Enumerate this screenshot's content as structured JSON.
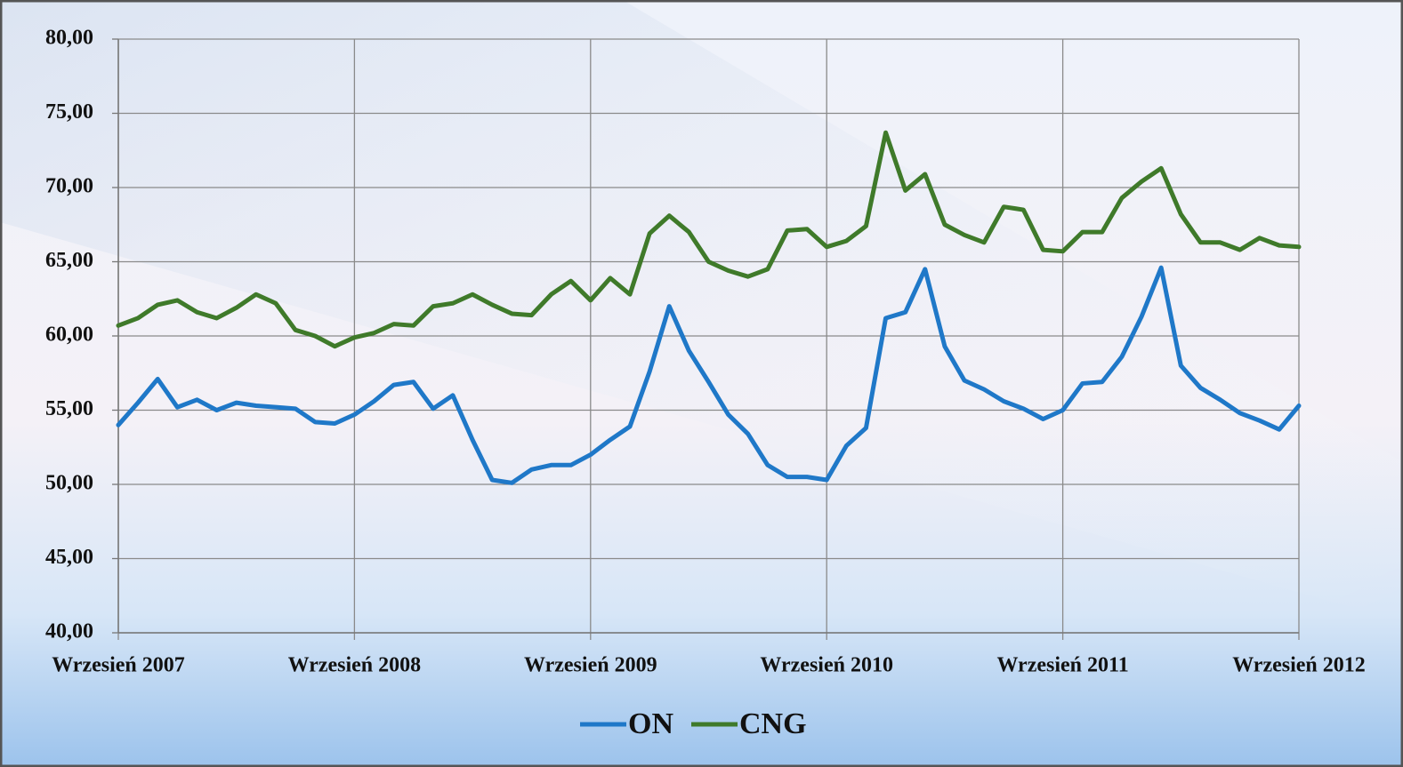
{
  "chart_data": {
    "type": "line",
    "categories": [
      "Wrzesień 2007",
      null,
      null,
      null,
      null,
      null,
      null,
      null,
      null,
      null,
      null,
      null,
      "Wrzesień 2008",
      null,
      null,
      null,
      null,
      null,
      null,
      null,
      null,
      null,
      null,
      null,
      "Wrzesień 2009",
      null,
      null,
      null,
      null,
      null,
      null,
      null,
      null,
      null,
      null,
      null,
      "Wrzesień 2010",
      null,
      null,
      null,
      null,
      null,
      null,
      null,
      null,
      null,
      null,
      null,
      "Wrzesień 2011",
      null,
      null,
      null,
      null,
      null,
      null,
      null,
      null,
      null,
      null,
      null,
      "Wrzesień 2012"
    ],
    "series": [
      {
        "name": "ON",
        "color": "#1f78c8",
        "values": [
          54.0,
          55.5,
          57.1,
          55.2,
          55.7,
          55.0,
          55.5,
          55.3,
          55.2,
          55.1,
          54.2,
          54.1,
          54.7,
          55.6,
          56.7,
          56.9,
          55.1,
          56.0,
          53.0,
          50.3,
          50.1,
          51.0,
          51.3,
          51.3,
          52.0,
          53.0,
          53.9,
          57.6,
          62.0,
          59.0,
          56.9,
          54.7,
          53.4,
          51.3,
          50.5,
          50.5,
          50.3,
          52.6,
          53.8,
          61.2,
          61.6,
          64.5,
          59.3,
          57.0,
          56.4,
          55.6,
          55.1,
          54.4,
          55.0,
          56.8,
          56.9,
          58.6,
          61.3,
          64.6,
          58.0,
          56.5,
          55.7,
          54.8,
          54.3,
          53.7,
          55.3
        ]
      },
      {
        "name": "CNG",
        "color": "#3f7a2a",
        "values": [
          60.7,
          61.2,
          62.1,
          62.4,
          61.6,
          61.2,
          61.9,
          62.8,
          62.2,
          60.4,
          60.0,
          59.3,
          59.9,
          60.2,
          60.8,
          60.7,
          62.0,
          62.2,
          62.8,
          62.1,
          61.5,
          61.4,
          62.8,
          63.7,
          62.4,
          63.9,
          62.8,
          66.9,
          68.1,
          67.0,
          65.0,
          64.4,
          64.0,
          64.5,
          67.1,
          67.2,
          66.0,
          66.4,
          67.4,
          73.7,
          69.8,
          70.9,
          67.5,
          66.8,
          66.3,
          68.7,
          68.5,
          65.8,
          65.7,
          67.0,
          67.0,
          69.3,
          70.4,
          71.3,
          68.2,
          66.3,
          66.3,
          65.8,
          66.6,
          66.1,
          66.0
        ]
      }
    ],
    "ylim": [
      40,
      80
    ],
    "yticks": [
      {
        "value": 40,
        "label": "40,00"
      },
      {
        "value": 45,
        "label": "45,00"
      },
      {
        "value": 50,
        "label": "50,00"
      },
      {
        "value": 55,
        "label": "55,00"
      },
      {
        "value": 60,
        "label": "60,00"
      },
      {
        "value": 65,
        "label": "65,00"
      },
      {
        "value": 70,
        "label": "70,00"
      },
      {
        "value": 75,
        "label": "75,00"
      },
      {
        "value": 80,
        "label": "80,00"
      }
    ],
    "grid": true,
    "legend": "bottom"
  }
}
